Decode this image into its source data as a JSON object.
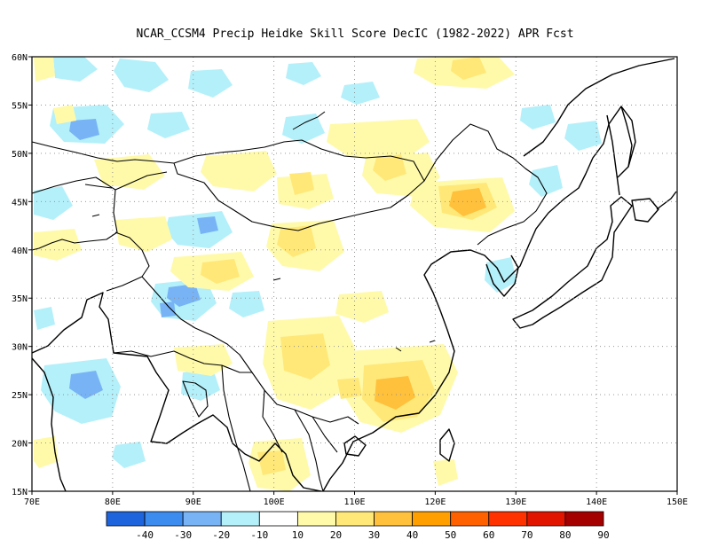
{
  "title": "NCAR_CCSM4 Precip Heidke Skill Score DecIC (1982-2022) APR Fcst",
  "map": {
    "lon_range": [
      70,
      150
    ],
    "lat_range": [
      15,
      60
    ],
    "lon_ticks": [
      "70E",
      "80E",
      "90E",
      "100E",
      "110E",
      "120E",
      "130E",
      "140E",
      "150E"
    ],
    "lat_ticks": [
      "15N",
      "20N",
      "25N",
      "30N",
      "35N",
      "40N",
      "45N",
      "50N",
      "55N",
      "60N"
    ],
    "gridlines": "dotted"
  },
  "colorbar": {
    "labels": [
      "-40",
      "-30",
      "-20",
      "-10",
      "10",
      "20",
      "30",
      "40",
      "50",
      "60",
      "70",
      "80",
      "90"
    ],
    "colors": [
      "#1e64dc",
      "#3c8cf0",
      "#78b4f5",
      "#b4f0fa",
      "#ffffff",
      "#fffaaa",
      "#ffe878",
      "#ffc03c",
      "#ffa000",
      "#ff6000",
      "#ff3200",
      "#e11400",
      "#a50000"
    ]
  }
}
